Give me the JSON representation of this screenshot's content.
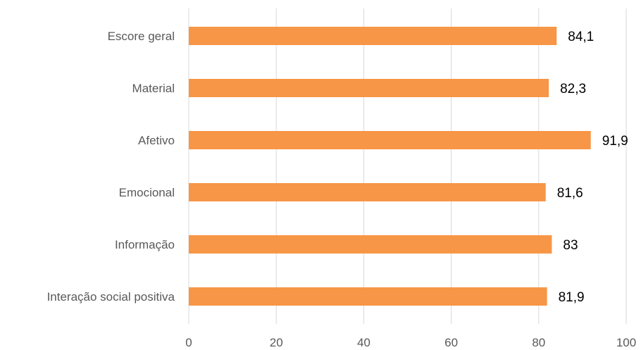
{
  "chart_data": {
    "type": "bar",
    "orientation": "horizontal",
    "categories": [
      "Escore geral",
      "Material",
      "Afetivo",
      "Emocional",
      "Informação",
      "Interação social positiva"
    ],
    "values": [
      84.1,
      82.3,
      91.9,
      81.6,
      83,
      81.9
    ],
    "data_labels": [
      "84,1",
      "82,3",
      "91,9",
      "81,6",
      "83",
      "81,9"
    ],
    "xlim": [
      0,
      100
    ],
    "x_ticks": [
      0,
      20,
      40,
      60,
      80,
      100
    ],
    "x_tick_labels": [
      "0",
      "20",
      "40",
      "60",
      "80",
      "100"
    ],
    "grid": true,
    "legend": "none",
    "bar_color": "#f79646",
    "title": "",
    "xlabel": "",
    "ylabel": ""
  }
}
